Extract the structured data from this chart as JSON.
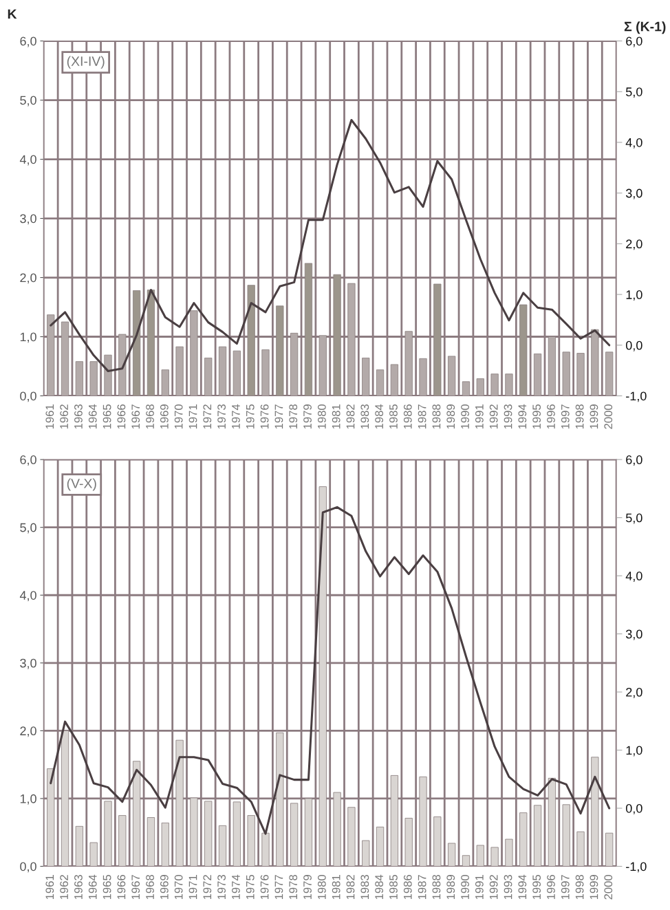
{
  "chart_data": [
    {
      "type": "bar",
      "ylabel": "K",
      "y2label": "Σ (K-1)",
      "annotations": [
        "(XI-IV)"
      ],
      "categories": [
        "1961",
        "1962",
        "1963",
        "1964",
        "1965",
        "1966",
        "1967",
        "1968",
        "1969",
        "1970",
        "1971",
        "1972",
        "1973",
        "1974",
        "1975",
        "1976",
        "1977",
        "1978",
        "1979",
        "1980",
        "1981",
        "1982",
        "1983",
        "1984",
        "1985",
        "1986",
        "1987",
        "1988",
        "1989",
        "1990",
        "1991",
        "1992",
        "1993",
        "1994",
        "1995",
        "1996",
        "1997",
        "1998",
        "1999",
        "2000"
      ],
      "series": [
        {
          "colors": [
            "#b3aaa9",
            "#b3aaa9",
            "#b3aaa9",
            "#b3aaa9",
            "#b3aaa9",
            "#b3aaa9",
            "#9c968c",
            "#9c968c",
            "#b3aaa9",
            "#b3aaa9",
            "#b3aaa9",
            "#b3aaa9",
            "#b3aaa9",
            "#b3aaa9",
            "#9c968c",
            "#b3aaa9",
            "#9c968c",
            "#b3aaa9",
            "#9c968c",
            "#b3aaa9",
            "#9c968c",
            "#b3aaa9",
            "#b3aaa9",
            "#b3aaa9",
            "#b3aaa9",
            "#b3aaa9",
            "#b3aaa9",
            "#9c968c",
            "#b3aaa9",
            "#b3aaa9",
            "#b3aaa9",
            "#b3aaa9",
            "#b3aaa9",
            "#9c968c",
            "#b3aaa9",
            "#b3aaa9",
            "#b3aaa9",
            "#b3aaa9",
            "#b3aaa9",
            "#b3aaa9"
          ],
          "values": [
            1.37,
            1.25,
            0.58,
            0.58,
            0.69,
            1.04,
            1.78,
            1.79,
            0.44,
            0.83,
            1.44,
            0.64,
            0.83,
            0.76,
            1.87,
            0.78,
            1.52,
            1.06,
            2.24,
            1.02,
            2.05,
            1.9,
            0.64,
            0.44,
            0.53,
            1.09,
            0.63,
            1.89,
            0.67,
            0.24,
            0.29,
            0.37,
            0.37,
            1.54,
            0.71,
            1.0,
            0.74,
            0.72,
            1.12,
            0.74
          ]
        },
        {
          "type": "line",
          "axis": "y2",
          "color": "#4a3f42",
          "values": [
            0.39,
            0.65,
            0.21,
            -0.2,
            -0.51,
            -0.46,
            0.2,
            1.09,
            0.55,
            0.36,
            0.83,
            0.45,
            0.26,
            0.03,
            0.83,
            0.65,
            1.16,
            1.24,
            2.47,
            2.47,
            3.56,
            4.44,
            4.07,
            3.6,
            3.01,
            3.12,
            2.73,
            3.63,
            3.27,
            2.47,
            1.7,
            1.03,
            0.49,
            1.03,
            0.74,
            0.7,
            0.42,
            0.13,
            0.29,
            0.0
          ]
        }
      ],
      "ylim": [
        0,
        6
      ],
      "yticks": [
        {
          "value": 0,
          "label": "0,0"
        },
        {
          "value": 1,
          "label": "1,0"
        },
        {
          "value": 2,
          "label": "2,0"
        },
        {
          "value": 3,
          "label": "3,0"
        },
        {
          "value": 4,
          "label": "4,0"
        },
        {
          "value": 5,
          "label": "5,0"
        },
        {
          "value": 6,
          "label": "6,0"
        }
      ],
      "y2lim": [
        -1,
        6
      ],
      "y2ticks": [
        {
          "value": -1,
          "label": "-1,0"
        },
        {
          "value": 0,
          "label": "0,0"
        },
        {
          "value": 1,
          "label": "1,0"
        },
        {
          "value": 2,
          "label": "2,0"
        },
        {
          "value": 3,
          "label": "3,0"
        },
        {
          "value": 4,
          "label": "4,0"
        },
        {
          "value": 5,
          "label": "5,0"
        },
        {
          "value": 6,
          "label": "6,0"
        }
      ],
      "grid": true
    },
    {
      "type": "bar",
      "annotations": [
        "(V-X)"
      ],
      "categories": [
        "1961",
        "1962",
        "1963",
        "1964",
        "1965",
        "1966",
        "1967",
        "1968",
        "1969",
        "1970",
        "1971",
        "1972",
        "1973",
        "1974",
        "1975",
        "1976",
        "1977",
        "1978",
        "1979",
        "1980",
        "1981",
        "1982",
        "1983",
        "1984",
        "1985",
        "1986",
        "1987",
        "1988",
        "1989",
        "1990",
        "1991",
        "1992",
        "1993",
        "1994",
        "1995",
        "1996",
        "1997",
        "1998",
        "1999",
        "2000"
      ],
      "series": [
        {
          "color": "#d9d5d2",
          "values": [
            1.44,
            2.0,
            0.59,
            0.35,
            0.96,
            0.75,
            1.55,
            0.72,
            0.64,
            1.86,
            1.01,
            0.96,
            0.6,
            0.95,
            0.75,
            0.49,
            1.97,
            0.93,
            1.0,
            5.6,
            1.09,
            0.87,
            0.38,
            0.58,
            1.34,
            0.71,
            1.32,
            0.73,
            0.34,
            0.16,
            0.31,
            0.28,
            0.4,
            0.79,
            0.9,
            1.3,
            0.91,
            0.51,
            1.61,
            0.49
          ]
        },
        {
          "type": "line",
          "axis": "y2",
          "color": "#4a3f42",
          "values": [
            0.43,
            1.49,
            1.09,
            0.43,
            0.36,
            0.11,
            0.66,
            0.4,
            0.01,
            0.88,
            0.88,
            0.83,
            0.42,
            0.35,
            0.11,
            -0.44,
            0.57,
            0.49,
            0.49,
            5.09,
            5.18,
            5.03,
            4.42,
            3.99,
            4.32,
            4.03,
            4.35,
            4.07,
            3.44,
            2.61,
            1.82,
            1.06,
            0.54,
            0.33,
            0.22,
            0.5,
            0.41,
            -0.09,
            0.54,
            0.0
          ]
        }
      ],
      "ylim": [
        0,
        6
      ],
      "yticks": [
        {
          "value": 0,
          "label": "0,0"
        },
        {
          "value": 1,
          "label": "1,0"
        },
        {
          "value": 2,
          "label": "2,0"
        },
        {
          "value": 3,
          "label": "3,0"
        },
        {
          "value": 4,
          "label": "4,0"
        },
        {
          "value": 5,
          "label": "5,0"
        },
        {
          "value": 6,
          "label": "6,0"
        }
      ],
      "y2lim": [
        -1,
        6
      ],
      "y2ticks": [
        {
          "value": -1,
          "label": "-1,0"
        },
        {
          "value": 0,
          "label": "0,0"
        },
        {
          "value": 1,
          "label": "1,0"
        },
        {
          "value": 2,
          "label": "2,0"
        },
        {
          "value": 3,
          "label": "3,0"
        },
        {
          "value": 4,
          "label": "4,0"
        },
        {
          "value": 5,
          "label": "5,0"
        },
        {
          "value": 6,
          "label": "6,0"
        }
      ],
      "grid": true
    }
  ]
}
